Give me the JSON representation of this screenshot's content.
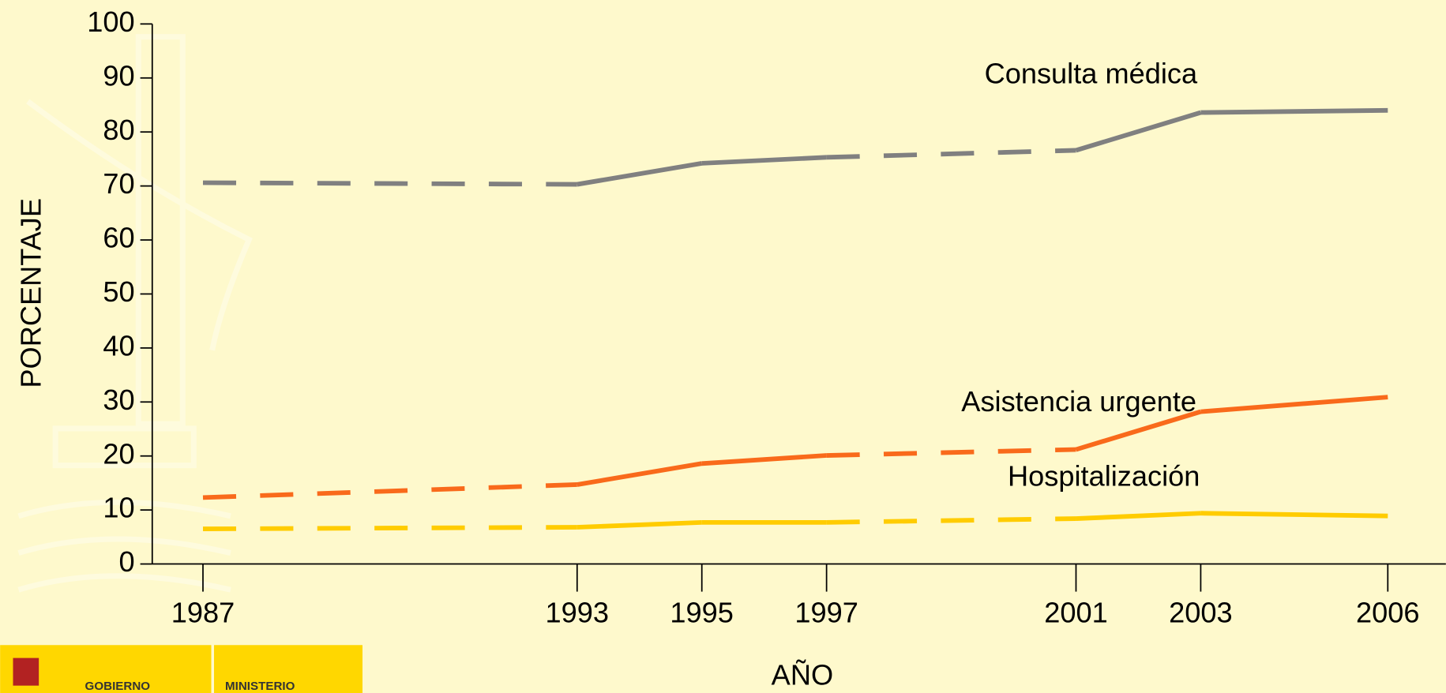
{
  "chart_data": {
    "type": "line",
    "x_label": "AÑO",
    "y_label": "PORCENTAJE",
    "x": [
      1987,
      1993,
      1995,
      1997,
      2001,
      2003,
      2006
    ],
    "xlim": [
      1987,
      2006
    ],
    "xticks": [
      1987,
      1993,
      1995,
      1997,
      2001,
      2003,
      2006
    ],
    "ylim": [
      0,
      100
    ],
    "yticks": [
      0,
      10,
      20,
      30,
      40,
      50,
      60,
      70,
      80,
      90,
      100
    ],
    "dashed_segments": [
      0,
      3
    ],
    "series": [
      {
        "name": "Consulta médica",
        "color": "#808080",
        "values": [
          70.6,
          70.3,
          74.2,
          75.3,
          76.6,
          83.6,
          84.0
        ]
      },
      {
        "name": "Asistencia urgente",
        "color": "#f96a1b",
        "values": [
          12.3,
          14.7,
          18.6,
          20.1,
          21.2,
          28.2,
          30.9
        ]
      },
      {
        "name": "Hospitalización",
        "color": "#ffcc00",
        "values": [
          6.5,
          6.8,
          7.7,
          7.7,
          8.4,
          9.4,
          8.9
        ]
      }
    ]
  },
  "footer": {
    "logo_left": "GOBIERNO",
    "logo_right": "MINISTERIO"
  }
}
